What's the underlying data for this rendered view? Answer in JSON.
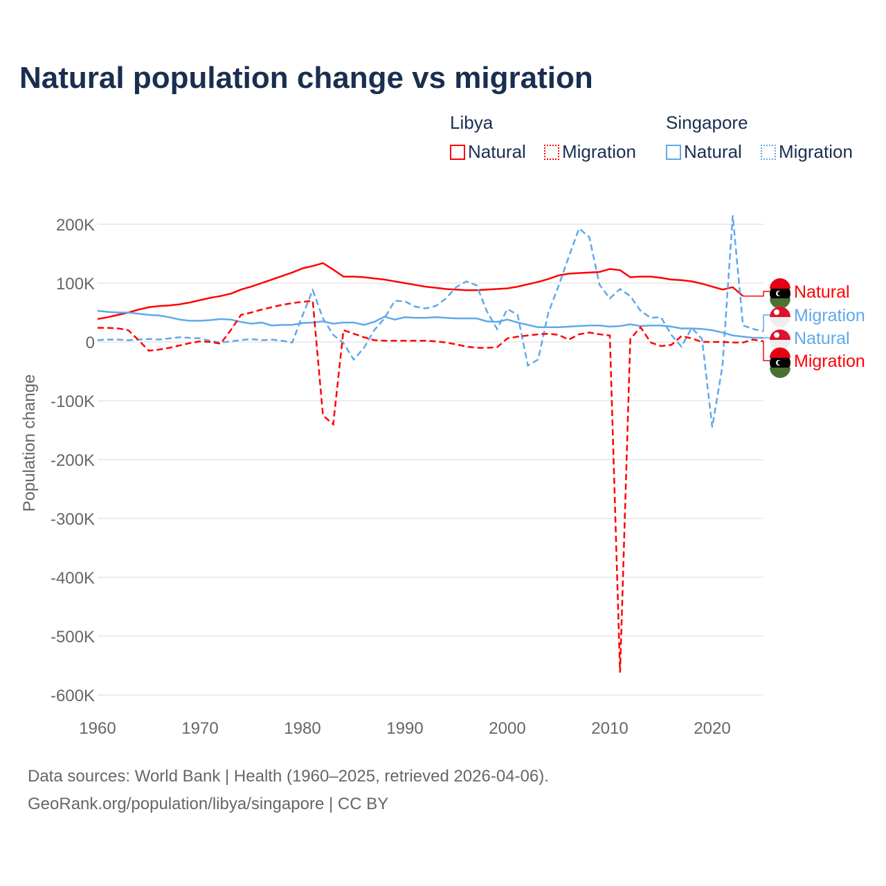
{
  "chart_data": {
    "type": "line",
    "title": "Natural population change vs migration",
    "ylabel": "Population change",
    "xlabel": "",
    "ylim": [
      -600000,
      200000
    ],
    "xlim": [
      1960,
      2025
    ],
    "yticks": [
      {
        "v": 200,
        "label": "200K"
      },
      {
        "v": 100,
        "label": "100K"
      },
      {
        "v": 0,
        "label": "0"
      },
      {
        "v": -100,
        "label": "-100K"
      },
      {
        "v": -200,
        "label": "-200K"
      },
      {
        "v": -300,
        "label": "-300K"
      },
      {
        "v": -400,
        "label": "-400K"
      },
      {
        "v": -500,
        "label": "-500K"
      },
      {
        "v": -600,
        "label": "-600K"
      }
    ],
    "xticks": [
      1960,
      1970,
      1980,
      1990,
      2000,
      2010,
      2020
    ],
    "units": "thousands",
    "start_year": 1960,
    "legend": {
      "groups": [
        {
          "country": "Libya",
          "items": [
            "Natural",
            "Migration"
          ]
        },
        {
          "country": "Singapore",
          "items": [
            "Natural",
            "Migration"
          ]
        }
      ],
      "placement": "top-right"
    },
    "series": [
      {
        "name": "Libya Natural",
        "label": "Natural",
        "color": "#ff0000",
        "dash": false,
        "values": [
          39,
          42,
          46,
          50,
          55,
          59,
          61,
          62,
          64,
          67,
          71,
          75,
          78,
          82,
          89,
          94,
          100,
          106,
          112,
          118,
          125,
          129,
          134,
          123,
          111,
          111,
          110,
          108,
          106,
          103,
          100,
          97,
          94,
          92,
          90,
          89,
          88,
          88,
          89,
          90,
          91,
          94,
          98,
          102,
          107,
          113,
          116,
          117,
          118,
          119,
          124,
          122,
          110,
          111,
          111,
          109,
          106,
          105,
          103,
          99,
          94,
          89,
          93,
          78
        ]
      },
      {
        "name": "Singapore Migration",
        "label": "Migration",
        "color": "#5fa8ea",
        "dash": true,
        "values": [
          3,
          4,
          4,
          3,
          4,
          5,
          4,
          6,
          8,
          7,
          6,
          2,
          -1,
          1,
          3,
          5,
          3,
          4,
          2,
          -1,
          45,
          88,
          40,
          12,
          -2,
          -30,
          -10,
          20,
          40,
          70,
          69,
          60,
          57,
          61,
          74,
          93,
          103,
          96,
          52,
          22,
          56,
          46,
          -40,
          -30,
          50,
          95,
          145,
          193,
          178,
          97,
          74,
          90,
          78,
          53,
          41,
          42,
          12,
          -8,
          24,
          5,
          -145,
          -40,
          215,
          28,
          22,
          18
        ]
      },
      {
        "name": "Singapore Natural",
        "label": "Natural",
        "color": "#5fa8ea",
        "dash": false,
        "values": [
          53,
          51,
          50,
          50,
          48,
          46,
          45,
          42,
          38,
          36,
          36,
          37,
          39,
          38,
          34,
          31,
          33,
          28,
          29,
          29,
          32,
          33,
          35,
          31,
          33,
          33,
          29,
          34,
          43,
          38,
          42,
          41,
          41,
          42,
          41,
          40,
          40,
          40,
          35,
          34,
          38,
          33,
          29,
          25,
          25,
          25,
          26,
          27,
          28,
          28,
          26,
          27,
          30,
          27,
          28,
          28,
          26,
          23,
          23,
          22,
          20,
          16,
          11,
          9,
          7,
          7
        ]
      },
      {
        "name": "Libya Migration",
        "label": "Migration",
        "color": "#ff0000",
        "dash": true,
        "values": [
          24,
          24,
          23,
          20,
          3,
          -15,
          -13,
          -10,
          -6,
          -2,
          1,
          0,
          -3,
          20,
          46,
          50,
          55,
          59,
          63,
          66,
          68,
          70,
          -125,
          -140,
          20,
          14,
          8,
          3,
          2,
          2,
          2,
          2,
          2,
          1,
          -1,
          -4,
          -8,
          -10,
          -10,
          -9,
          6,
          9,
          11,
          13,
          14,
          12,
          4,
          13,
          16,
          13,
          11,
          -562,
          5,
          25,
          -1,
          -7,
          -5,
          10,
          6,
          0,
          0,
          0,
          -1,
          -1,
          4,
          1
        ]
      }
    ]
  },
  "legend": {
    "libya": "Libya",
    "singapore": "Singapore",
    "natural": "Natural",
    "migration": "Migration"
  },
  "footer": {
    "line1": "Data sources: World Bank | Health (1960–2025, retrieved 2026-04-06).",
    "line2": "GeoRank.org/population/libya/singapore | CC BY"
  }
}
